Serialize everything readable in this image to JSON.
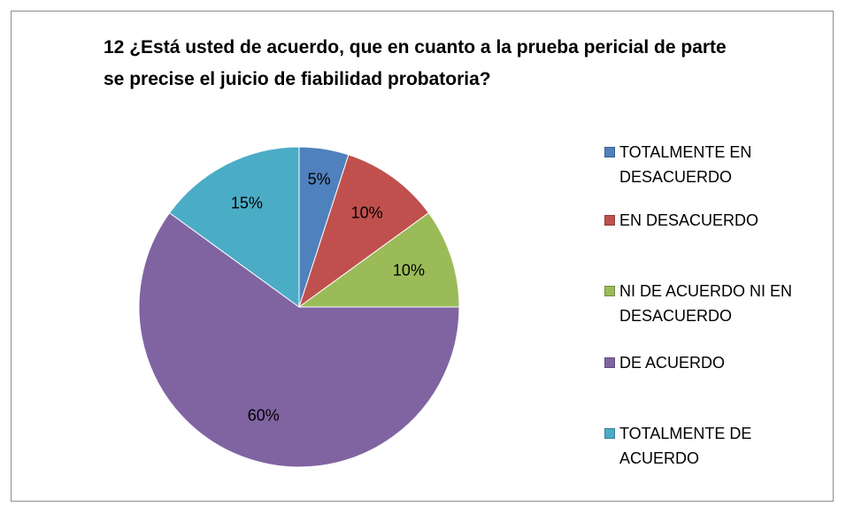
{
  "chart_data": {
    "type": "pie",
    "title": "12 ¿Está usted de acuerdo, que en cuanto a la prueba pericial de parte se precise el juicio de fiabilidad probatoria?",
    "categories": [
      "TOTALMENTE EN DESACUERDO",
      "EN DESACUERDO",
      "NI DE ACUERDO NI EN DESACUERDO",
      "DE ACUERDO",
      "TOTALMENTE DE ACUERDO"
    ],
    "values": [
      5,
      10,
      10,
      60,
      15
    ],
    "value_labels": [
      "5%",
      "10%",
      "10%",
      "60%",
      "15%"
    ],
    "colors": [
      "#4f81bd",
      "#c0504d",
      "#9bbb59",
      "#8064a2",
      "#4bacc6"
    ],
    "legend": "right"
  }
}
